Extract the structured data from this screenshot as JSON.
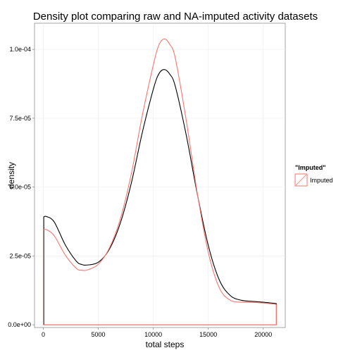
{
  "chart_data": {
    "type": "line",
    "title": "Density plot comparing raw and NA-imputed activity datasets",
    "xlabel": "total steps",
    "ylabel": "density",
    "xlim": [
      -800,
      22000
    ],
    "ylim": [
      -1e-06,
      0.0001095
    ],
    "x_ticks": [
      0,
      5000,
      10000,
      15000,
      20000
    ],
    "x_tick_labels": [
      "0",
      "5000",
      "10000",
      "15000",
      "20000"
    ],
    "y_ticks": [
      0,
      2.5e-05,
      5e-05,
      7.5e-05,
      0.0001
    ],
    "y_tick_labels": [
      "0.0e+00",
      "2.5e-05",
      "5.0e-05",
      "7.5e-05",
      "1.0e-04"
    ],
    "grid": true,
    "legend": {
      "title": "\"Imputed\"",
      "placement": "right",
      "entries": [
        {
          "label": "Imputed",
          "color": "#f8766d"
        }
      ]
    },
    "series": [
      {
        "color": "#000000",
        "x": [
          41,
          300,
          1000,
          2000,
          3000,
          3500,
          4000,
          5000,
          6000,
          7000,
          8000,
          9000,
          10000,
          10500,
          11000,
          11500,
          12000,
          13000,
          14000,
          15000,
          16000,
          17000,
          18000,
          19000,
          20000,
          21194
        ],
        "y": [
          3.92e-05,
          3.93e-05,
          3.73e-05,
          2.9e-05,
          2.31e-05,
          2.19e-05,
          2.17e-05,
          2.27e-05,
          2.74e-05,
          3.69e-05,
          5.14e-05,
          6.98e-05,
          8.55e-05,
          9.11e-05,
          9.27e-05,
          9.1e-05,
          8.66e-05,
          6.88e-05,
          4.75e-05,
          2.88e-05,
          1.63e-05,
          1.06e-05,
          8.9e-06,
          8.5e-06,
          8.2e-06,
          7.7e-06
        ]
      },
      {
        "color": "#f8766d",
        "x": [
          0,
          300,
          1000,
          2000,
          3000,
          3500,
          4000,
          5000,
          6000,
          7000,
          8000,
          9000,
          10000,
          10500,
          11000,
          11500,
          12000,
          13000,
          14000,
          15000,
          16000,
          17000,
          18000,
          19000,
          20000,
          21194
        ],
        "y": [
          3.45e-05,
          3.45e-05,
          3.23e-05,
          2.53e-05,
          2.05e-05,
          1.98e-05,
          1.99e-05,
          2.2e-05,
          2.78e-05,
          3.84e-05,
          5.48e-05,
          7.6e-05,
          9.43e-05,
          0.0001015,
          0.0001038,
          0.0001018,
          9.68e-05,
          7.41e-05,
          4.78e-05,
          2.63e-05,
          1.34e-05,
          8.9e-06,
          8.2e-06,
          8.1e-06,
          7.9e-06,
          7.4e-06
        ]
      }
    ]
  }
}
